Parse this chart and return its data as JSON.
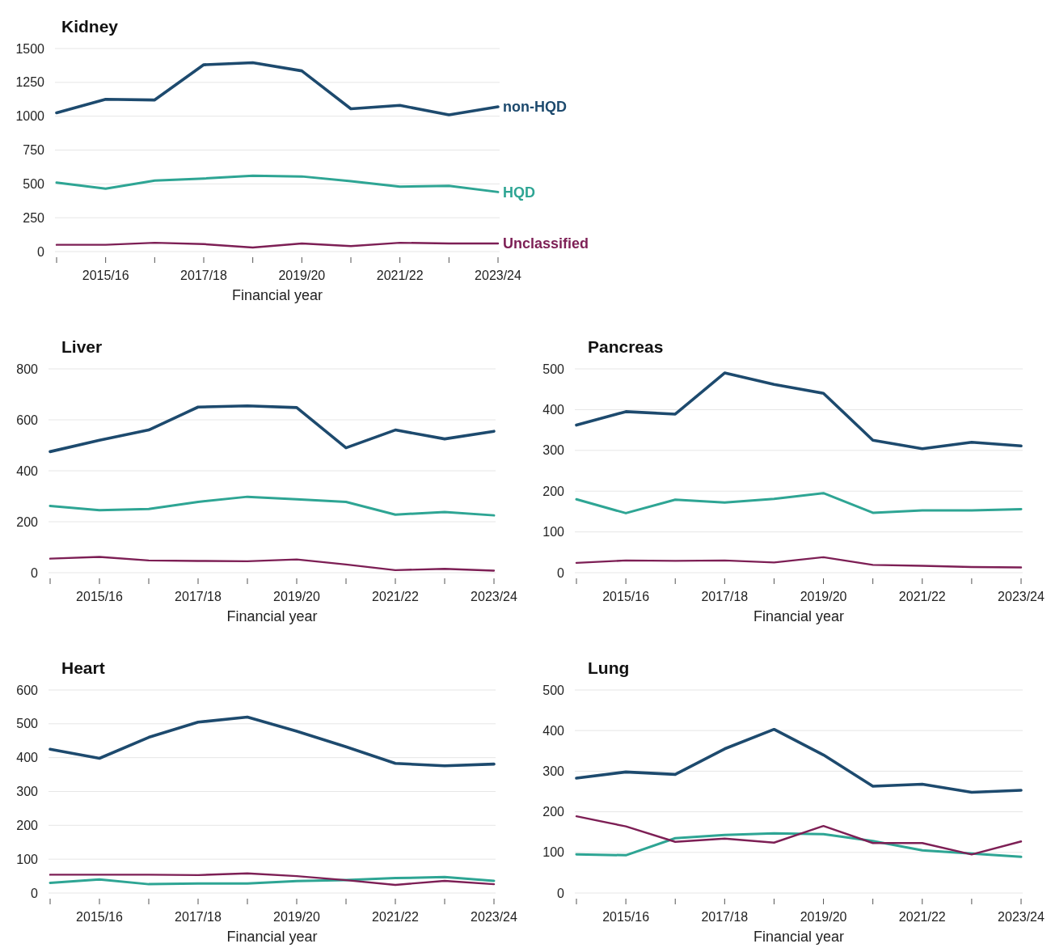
{
  "chart_data": [
    {
      "type": "line",
      "title": "Kidney",
      "xlabel": "Financial year",
      "categories": [
        null,
        "2015/16",
        null,
        "2017/18",
        null,
        "2019/20",
        null,
        "2021/22",
        null,
        "2023/24"
      ],
      "ylim": [
        0,
        1500
      ],
      "yticks": [
        0,
        250,
        500,
        750,
        1000,
        1250,
        1500
      ],
      "grid": "y",
      "series": [
        {
          "name": "non-HQD",
          "color": "#1d4a6e",
          "values": [
            1025,
            1125,
            1120,
            1380,
            1395,
            1335,
            1055,
            1080,
            1010,
            1070
          ]
        },
        {
          "name": "HQD",
          "color": "#2ea594",
          "values": [
            510,
            465,
            525,
            540,
            560,
            555,
            520,
            480,
            485,
            440
          ]
        },
        {
          "name": "Unclassified",
          "color": "#7d1f55",
          "values": [
            50,
            50,
            65,
            55,
            30,
            60,
            40,
            65,
            60,
            60
          ]
        }
      ]
    },
    {
      "type": "line",
      "title": "Liver",
      "xlabel": "Financial year",
      "categories": [
        null,
        "2015/16",
        null,
        "2017/18",
        null,
        "2019/20",
        null,
        "2021/22",
        null,
        "2023/24"
      ],
      "ylim": [
        0,
        800
      ],
      "yticks": [
        0,
        200,
        400,
        600,
        800
      ],
      "grid": "y",
      "series": [
        {
          "color": "#1d4a6e",
          "values": [
            475,
            520,
            560,
            650,
            655,
            648,
            490,
            560,
            525,
            555
          ]
        },
        {
          "color": "#2ea594",
          "values": [
            262,
            245,
            250,
            278,
            298,
            288,
            278,
            228,
            238,
            225
          ]
        },
        {
          "color": "#7d1f55",
          "values": [
            55,
            62,
            48,
            46,
            45,
            52,
            32,
            10,
            15,
            8
          ]
        }
      ]
    },
    {
      "type": "line",
      "title": "Pancreas",
      "xlabel": "Financial year",
      "categories": [
        null,
        "2015/16",
        null,
        "2017/18",
        null,
        "2019/20",
        null,
        "2021/22",
        null,
        "2023/24"
      ],
      "ylim": [
        0,
        500
      ],
      "yticks": [
        0,
        100,
        200,
        300,
        400,
        500
      ],
      "grid": "y",
      "series": [
        {
          "color": "#1d4a6e",
          "values": [
            362,
            395,
            389,
            490,
            462,
            440,
            325,
            304,
            320,
            311
          ]
        },
        {
          "color": "#2ea594",
          "values": [
            180,
            146,
            179,
            172,
            181,
            195,
            147,
            153,
            153,
            156
          ]
        },
        {
          "color": "#7d1f55",
          "values": [
            24,
            30,
            29,
            30,
            25,
            38,
            19,
            17,
            14,
            13
          ]
        }
      ]
    },
    {
      "type": "line",
      "title": "Heart",
      "xlabel": "Financial year",
      "categories": [
        null,
        "2015/16",
        null,
        "2017/18",
        null,
        "2019/20",
        null,
        "2021/22",
        null,
        "2023/24"
      ],
      "ylim": [
        0,
        600
      ],
      "yticks": [
        0,
        100,
        200,
        300,
        400,
        500,
        600
      ],
      "grid": "y",
      "series": [
        {
          "color": "#1d4a6e",
          "values": [
            425,
            398,
            460,
            505,
            520,
            478,
            432,
            383,
            376,
            381
          ]
        },
        {
          "color": "#2ea594",
          "values": [
            30,
            40,
            26,
            28,
            28,
            35,
            38,
            44,
            47,
            36
          ]
        },
        {
          "color": "#7d1f55",
          "values": [
            54,
            54,
            54,
            53,
            58,
            50,
            38,
            24,
            36,
            26
          ]
        }
      ]
    },
    {
      "type": "line",
      "title": "Lung",
      "xlabel": "Financial year",
      "categories": [
        null,
        "2015/16",
        null,
        "2017/18",
        null,
        "2019/20",
        null,
        "2021/22",
        null,
        "2023/24"
      ],
      "ylim": [
        0,
        500
      ],
      "yticks": [
        0,
        100,
        200,
        300,
        400,
        500
      ],
      "grid": "y",
      "series": [
        {
          "color": "#1d4a6e",
          "values": [
            283,
            298,
            292,
            355,
            403,
            340,
            263,
            268,
            248,
            253
          ]
        },
        {
          "color": "#2ea594",
          "values": [
            95,
            93,
            135,
            143,
            147,
            145,
            128,
            105,
            97,
            89
          ]
        },
        {
          "color": "#7d1f55",
          "values": [
            189,
            164,
            126,
            134,
            124,
            165,
            123,
            123,
            95,
            127
          ]
        }
      ]
    }
  ]
}
